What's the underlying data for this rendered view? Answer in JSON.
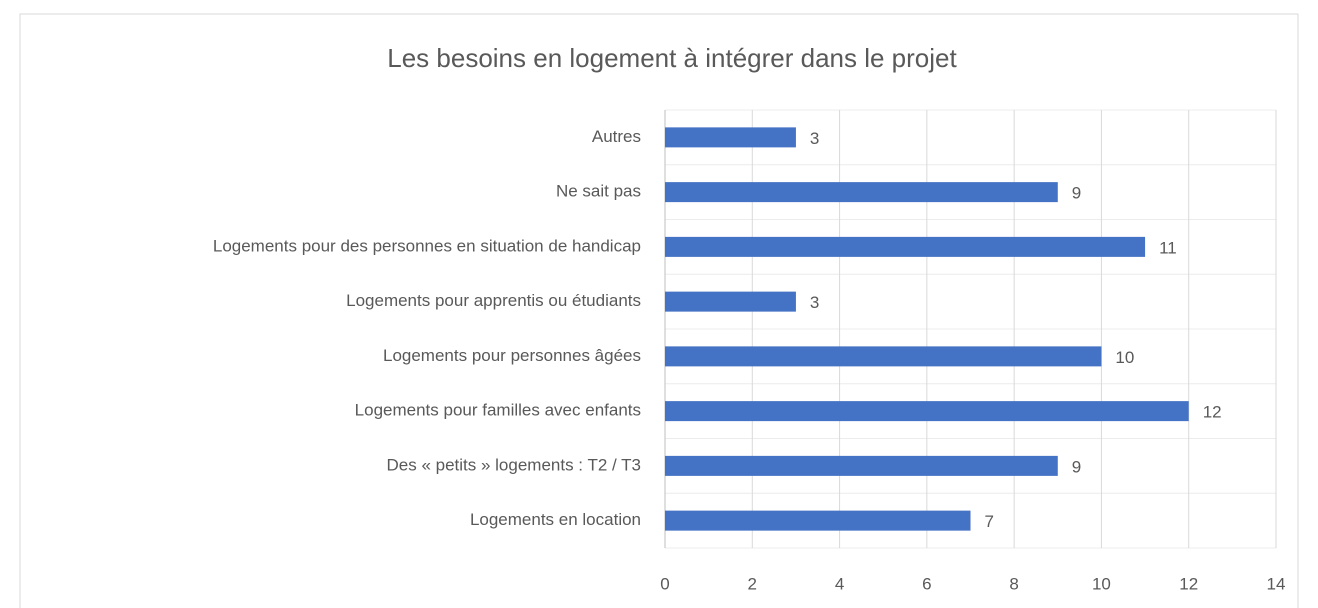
{
  "chart_data": {
    "type": "bar",
    "orientation": "horizontal",
    "title": "Les besoins en logement à intégrer dans le projet",
    "categories": [
      "Autres",
      "Ne sait pas",
      "Logements pour des personnes en situation de handicap",
      "Logements pour apprentis ou étudiants",
      "Logements pour personnes âgées",
      "Logements pour familles avec enfants",
      "Des « petits » logements : T2 / T3",
      "Logements en location"
    ],
    "values": [
      3,
      9,
      11,
      3,
      10,
      12,
      9,
      7
    ],
    "color": "#4472c4",
    "xlim": [
      0,
      14
    ],
    "xticks": [
      0,
      2,
      4,
      6,
      8,
      10,
      12,
      14
    ],
    "grid": true
  }
}
